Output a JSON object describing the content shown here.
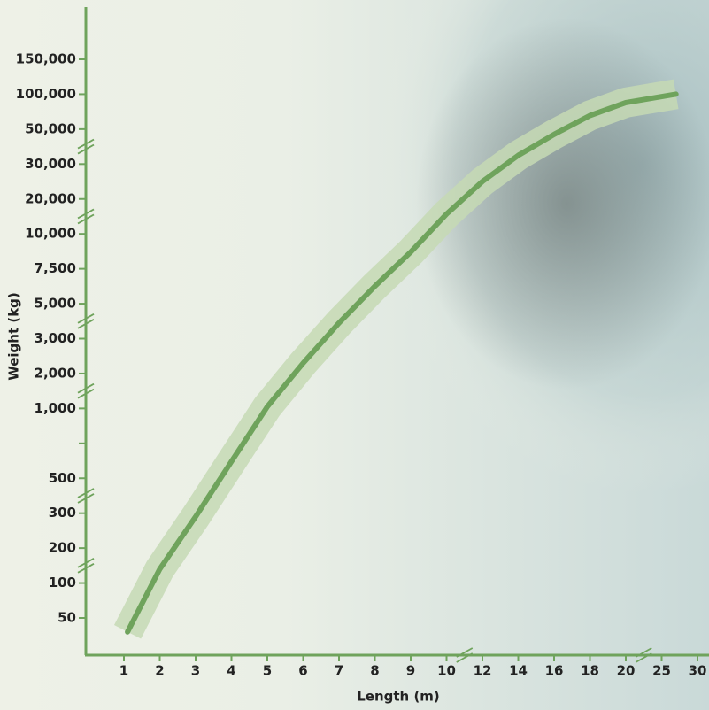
{
  "chart_data": {
    "type": "line",
    "x_label": "Length (m)",
    "y_label": "Weight (kg)",
    "x": [
      1.1,
      2,
      3,
      4,
      5,
      6,
      7,
      8,
      9,
      10,
      12,
      14,
      16,
      18,
      20,
      27
    ],
    "series": [
      {
        "name": "Weight",
        "color": "#6fa35c",
        "values": [
          30,
          140,
          290,
          620,
          1050,
          2300,
          3900,
          6250,
          8700,
          15700,
          25000,
          35000,
          47000,
          69500,
          88000,
          100000
        ]
      }
    ],
    "xlim": [
      1,
      30
    ],
    "xticks": [
      1,
      2,
      3,
      4,
      5,
      6,
      7,
      8,
      9,
      10,
      12,
      14,
      16,
      18,
      20,
      25,
      30
    ],
    "ylim": [
      50,
      150000
    ],
    "yticks": [
      50,
      100,
      200,
      300,
      500,
      {
        "value": 750,
        "label": null
      },
      {
        "value": 1000,
        "label": "1,000"
      },
      {
        "value": 2000,
        "label": "2,000"
      },
      {
        "value": 3000,
        "label": "3,000"
      },
      {
        "value": 5000,
        "label": "5,000"
      },
      {
        "value": 7500,
        "label": "7,500"
      },
      {
        "value": 10000,
        "label": "10,000"
      },
      {
        "value": 20000,
        "label": "20,000"
      },
      {
        "value": 30000,
        "label": "30,000"
      },
      {
        "value": 50000,
        "label": "50,000"
      },
      {
        "value": 100000,
        "label": "100,000"
      },
      {
        "value": 150000,
        "label": "150,000"
      }
    ]
  }
}
